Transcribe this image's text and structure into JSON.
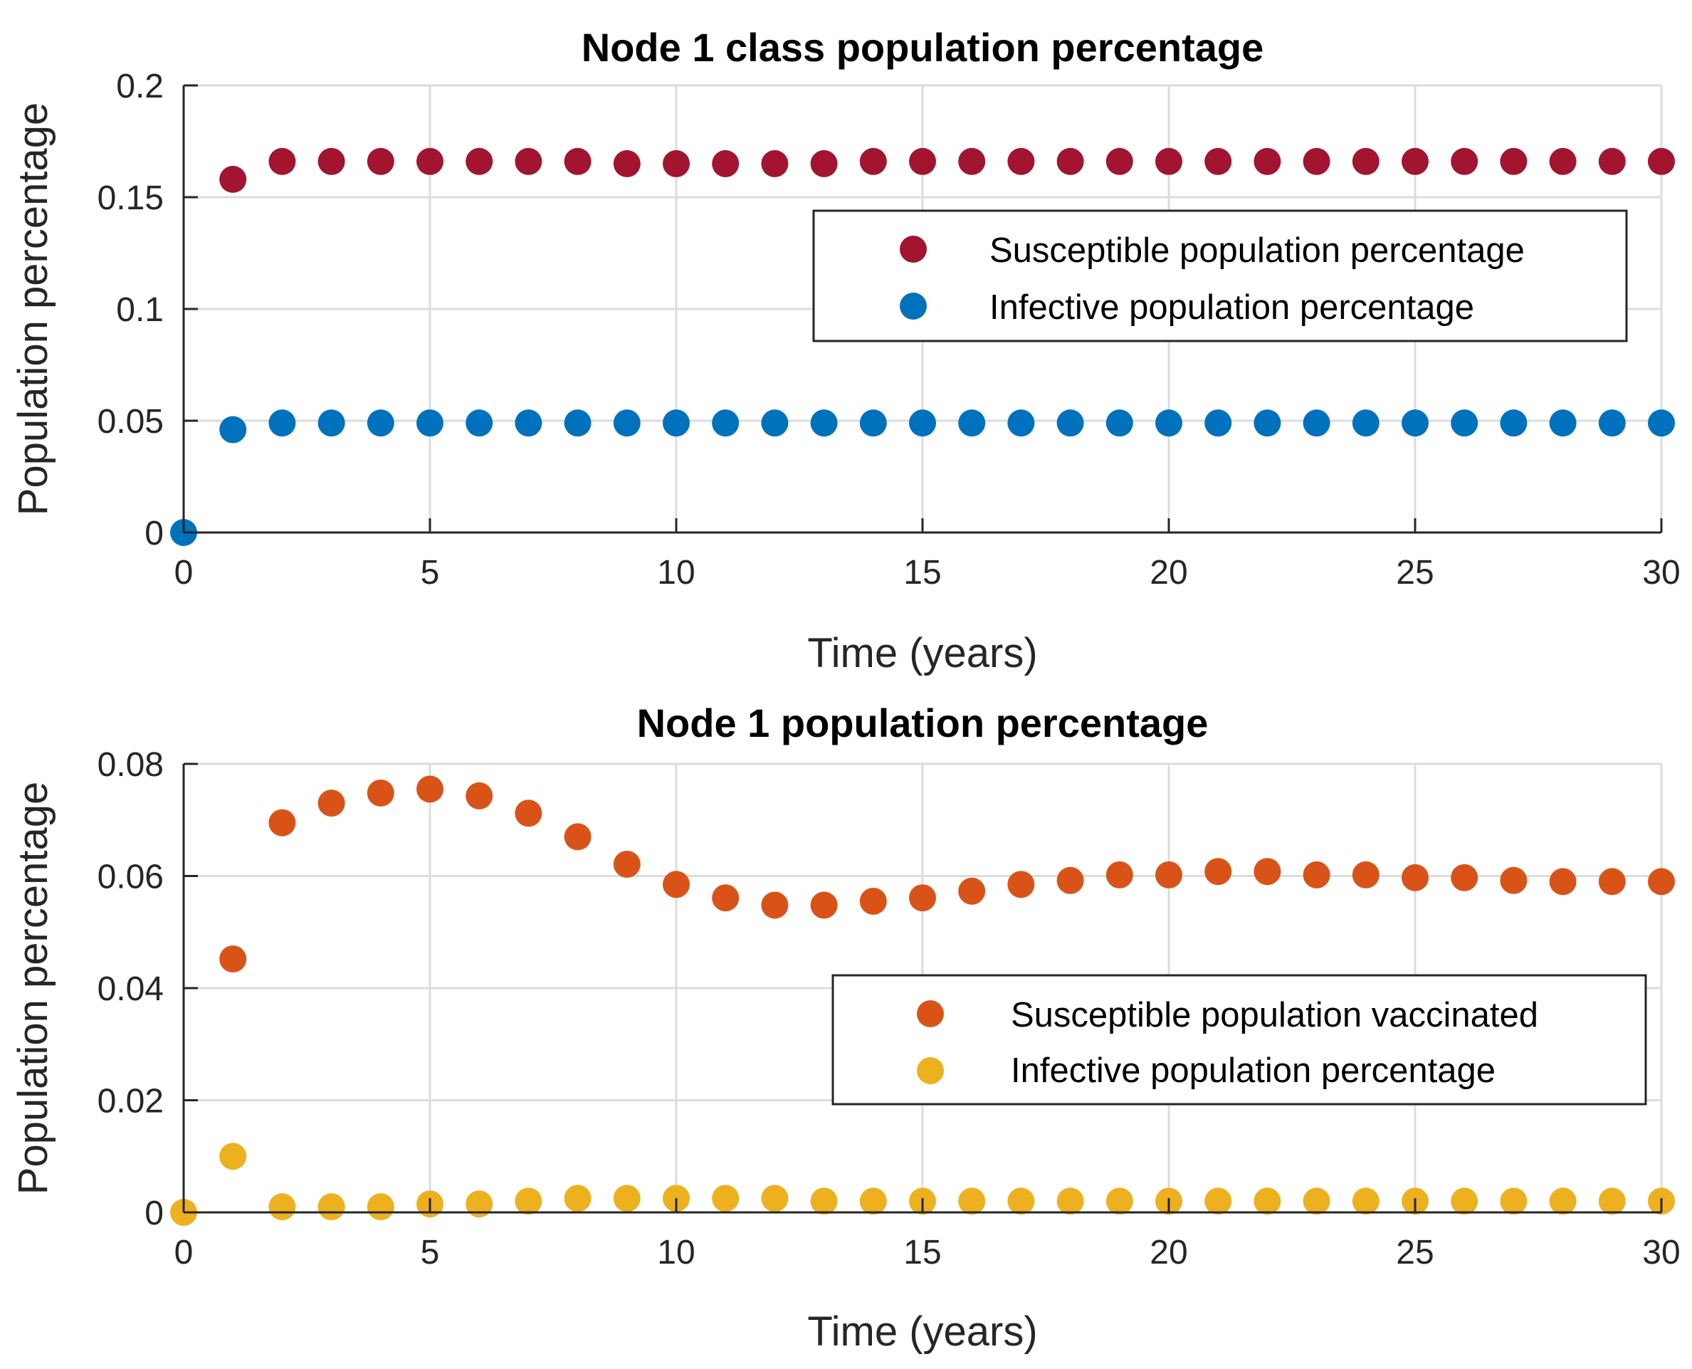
{
  "chart_data": [
    {
      "type": "scatter",
      "title": "Node 1 class population percentage",
      "xlabel": "Time (years)",
      "ylabel": "Population percentage",
      "xlim": [
        0,
        30
      ],
      "ylim": [
        0,
        0.2
      ],
      "xticks": [
        0,
        5,
        10,
        15,
        20,
        25,
        30
      ],
      "xtick_labels": [
        "0",
        "5",
        "10",
        "15",
        "20",
        "25",
        "30"
      ],
      "yticks": [
        0,
        0.05,
        0.1,
        0.15,
        0.2
      ],
      "ytick_labels": [
        "0",
        "0.05",
        "0.1",
        "0.15",
        "0.2"
      ],
      "grid": true,
      "legend_position": "right",
      "x": [
        0,
        1,
        2,
        3,
        4,
        5,
        6,
        7,
        8,
        9,
        10,
        11,
        12,
        13,
        14,
        15,
        16,
        17,
        18,
        19,
        20,
        21,
        22,
        23,
        24,
        25,
        26,
        27,
        28,
        29,
        30
      ],
      "series": [
        {
          "name": "Susceptible population percentage",
          "color": "#A2142F",
          "values": [
            null,
            0.158,
            0.166,
            0.166,
            0.166,
            0.166,
            0.166,
            0.166,
            0.166,
            0.165,
            0.165,
            0.165,
            0.165,
            0.165,
            0.166,
            0.166,
            0.166,
            0.166,
            0.166,
            0.166,
            0.166,
            0.166,
            0.166,
            0.166,
            0.166,
            0.166,
            0.166,
            0.166,
            0.166,
            0.166,
            0.166
          ]
        },
        {
          "name": "Infective population percentage",
          "color": "#0072BD",
          "values": [
            0.0,
            0.046,
            0.049,
            0.049,
            0.049,
            0.049,
            0.049,
            0.049,
            0.049,
            0.049,
            0.049,
            0.049,
            0.049,
            0.049,
            0.049,
            0.049,
            0.049,
            0.049,
            0.049,
            0.049,
            0.049,
            0.049,
            0.049,
            0.049,
            0.049,
            0.049,
            0.049,
            0.049,
            0.049,
            0.049,
            0.049
          ]
        }
      ]
    },
    {
      "type": "scatter",
      "title": "Node 1 population percentage",
      "xlabel": "Time (years)",
      "ylabel": "Population percentage",
      "xlim": [
        0,
        30
      ],
      "ylim": [
        0,
        0.08
      ],
      "xticks": [
        0,
        5,
        10,
        15,
        20,
        25,
        30
      ],
      "xtick_labels": [
        "0",
        "5",
        "10",
        "15",
        "20",
        "25",
        "30"
      ],
      "yticks": [
        0,
        0.02,
        0.04,
        0.06,
        0.08
      ],
      "ytick_labels": [
        "0",
        "0.02",
        "0.04",
        "0.06",
        "0.08"
      ],
      "grid": true,
      "legend_position": "right",
      "x": [
        0,
        1,
        2,
        3,
        4,
        5,
        6,
        7,
        8,
        9,
        10,
        11,
        12,
        13,
        14,
        15,
        16,
        17,
        18,
        19,
        20,
        21,
        22,
        23,
        24,
        25,
        26,
        27,
        28,
        29,
        30
      ],
      "series": [
        {
          "name": "Susceptible population vaccinated",
          "color": "#D95319",
          "values": [
            null,
            0.0452,
            0.0695,
            0.073,
            0.0748,
            0.0755,
            0.0743,
            0.0712,
            0.067,
            0.0621,
            0.0585,
            0.0561,
            0.0548,
            0.0548,
            0.0555,
            0.0561,
            0.0573,
            0.0585,
            0.0592,
            0.0602,
            0.0602,
            0.0608,
            0.0608,
            0.0602,
            0.0602,
            0.0597,
            0.0597,
            0.0592,
            0.059,
            0.059,
            0.059
          ]
        },
        {
          "name": "Infective population percentage",
          "color": "#EDB120",
          "values": [
            0.0,
            0.01,
            0.001,
            0.001,
            0.001,
            0.0015,
            0.0015,
            0.002,
            0.0025,
            0.0025,
            0.0025,
            0.0025,
            0.0025,
            0.002,
            0.002,
            0.002,
            0.002,
            0.002,
            0.002,
            0.002,
            0.002,
            0.002,
            0.002,
            0.002,
            0.002,
            0.002,
            0.002,
            0.002,
            0.002,
            0.002,
            0.002
          ]
        }
      ]
    }
  ]
}
